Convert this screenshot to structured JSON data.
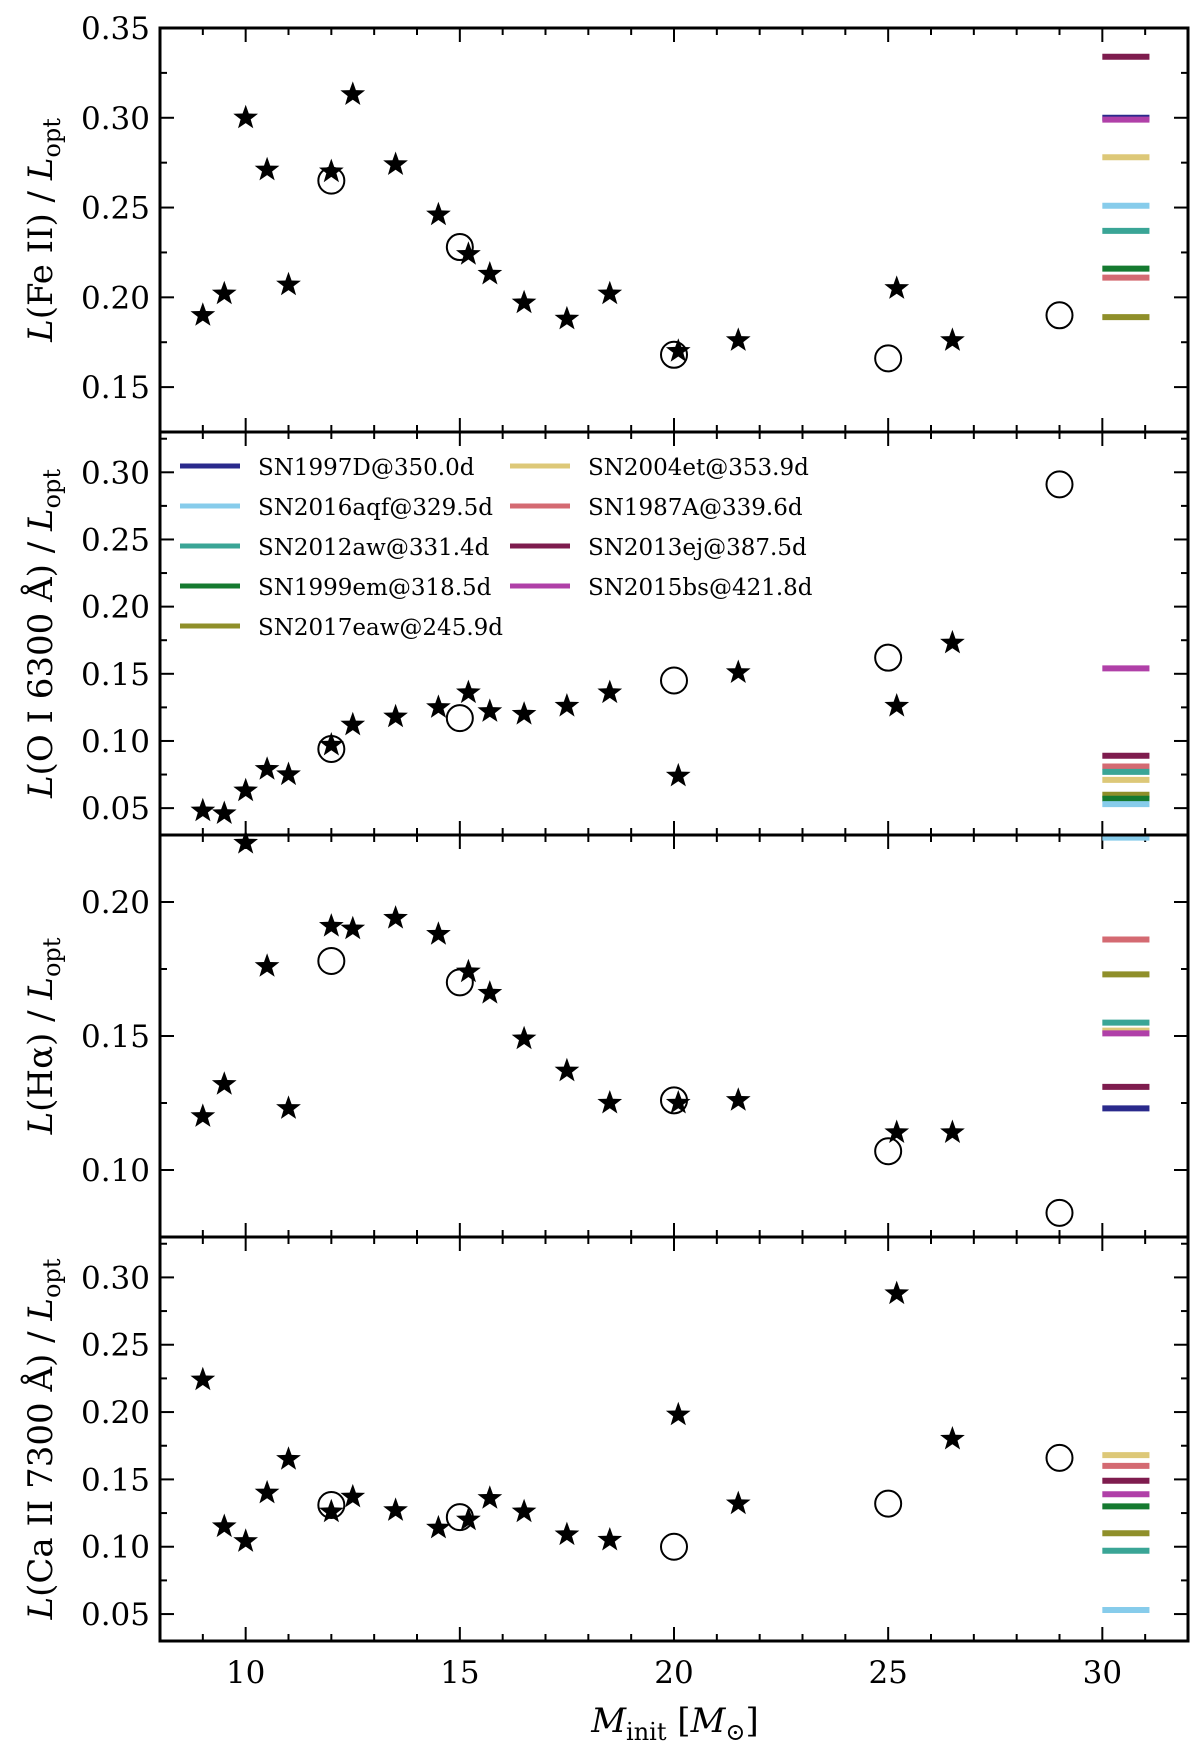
{
  "chart_data": {
    "type": "scatter",
    "xlabel": "M_init [M_⊙]",
    "xlim": [
      8,
      32
    ],
    "xticks": [
      10,
      15,
      20,
      25,
      30
    ],
    "sn_colors": {
      "SN1997D": "#2a2a8c",
      "SN2016aqf": "#87cceb",
      "SN2012aw": "#3aa596",
      "SN1999em": "#157a30",
      "SN2017eaw": "#8f8f2a",
      "SN2004et": "#ddc878",
      "SN1987A": "#d46a72",
      "SN2013ej": "#7e1c4e",
      "SN2015bs": "#b040a8"
    },
    "legend": [
      {
        "sn": "SN1997D",
        "label": "SN1997D@350.0d"
      },
      {
        "sn": "SN2016aqf",
        "label": "SN2016aqf@329.5d"
      },
      {
        "sn": "SN2012aw",
        "label": "SN2012aw@331.4d"
      },
      {
        "sn": "SN1999em",
        "label": "SN1999em@318.5d"
      },
      {
        "sn": "SN2017eaw",
        "label": "SN2017eaw@245.9d"
      },
      {
        "sn": "SN2004et",
        "label": "SN2004et@353.9d"
      },
      {
        "sn": "SN1987A",
        "label": "SN1987A@339.6d"
      },
      {
        "sn": "SN2013ej",
        "label": "SN2013ej@387.5d"
      },
      {
        "sn": "SN2015bs",
        "label": "SN2015bs@421.8d"
      }
    ],
    "panels": [
      {
        "name": "fe2",
        "ylabel": {
          "pre": "L",
          "mid": "(Fe II) / ",
          "post": "L",
          "sub": "opt"
        },
        "ylim": [
          0.125,
          0.35
        ],
        "yticks": [
          "0.15",
          "0.20",
          "0.25",
          "0.30",
          "0.35"
        ],
        "stars": [
          [
            9.0,
            0.19
          ],
          [
            9.5,
            0.202
          ],
          [
            10.0,
            0.3
          ],
          [
            10.5,
            0.271
          ],
          [
            11.0,
            0.207
          ],
          [
            12.0,
            0.27
          ],
          [
            12.5,
            0.313
          ],
          [
            13.5,
            0.274
          ],
          [
            14.5,
            0.246
          ],
          [
            15.2,
            0.224
          ],
          [
            15.7,
            0.213
          ],
          [
            16.5,
            0.197
          ],
          [
            17.5,
            0.188
          ],
          [
            18.5,
            0.202
          ],
          [
            20.1,
            0.17
          ],
          [
            21.5,
            0.176
          ],
          [
            25.2,
            0.205
          ],
          [
            26.5,
            0.176
          ]
        ],
        "circles": [
          [
            12.0,
            0.265
          ],
          [
            15.0,
            0.228
          ],
          [
            20.0,
            0.168
          ],
          [
            25.0,
            0.166
          ],
          [
            29.0,
            0.19
          ]
        ],
        "observed": [
          {
            "sn": "SN2013ej",
            "value": 0.334
          },
          {
            "sn": "SN1997D",
            "value": 0.3
          },
          {
            "sn": "SN2015bs",
            "value": 0.299
          },
          {
            "sn": "SN2004et",
            "value": 0.278
          },
          {
            "sn": "SN2016aqf",
            "value": 0.251
          },
          {
            "sn": "SN2012aw",
            "value": 0.237
          },
          {
            "sn": "SN1999em",
            "value": 0.216
          },
          {
            "sn": "SN1987A",
            "value": 0.211
          },
          {
            "sn": "SN2017eaw",
            "value": 0.189
          }
        ]
      },
      {
        "name": "o1",
        "ylabel": {
          "pre": "L",
          "mid": "(O I 6300 Å) / ",
          "post": "L",
          "sub": "opt"
        },
        "ylim": [
          0.03,
          0.33
        ],
        "yticks": [
          "0.05",
          "0.10",
          "0.15",
          "0.20",
          "0.25",
          "0.30"
        ],
        "stars": [
          [
            9.0,
            0.048
          ],
          [
            9.5,
            0.046
          ],
          [
            10.0,
            0.063
          ],
          [
            10.5,
            0.079
          ],
          [
            11.0,
            0.075
          ],
          [
            12.0,
            0.097
          ],
          [
            12.5,
            0.112
          ],
          [
            13.5,
            0.118
          ],
          [
            14.5,
            0.125
          ],
          [
            15.2,
            0.136
          ],
          [
            15.7,
            0.122
          ],
          [
            16.5,
            0.12
          ],
          [
            17.5,
            0.126
          ],
          [
            18.5,
            0.136
          ],
          [
            20.1,
            0.074
          ],
          [
            21.5,
            0.151
          ],
          [
            25.2,
            0.126
          ],
          [
            26.5,
            0.173
          ]
        ],
        "circles": [
          [
            12.0,
            0.094
          ],
          [
            15.0,
            0.117
          ],
          [
            20.0,
            0.145
          ],
          [
            25.0,
            0.162
          ],
          [
            29.0,
            0.291
          ]
        ],
        "observed": [
          {
            "sn": "SN2015bs",
            "value": 0.154
          },
          {
            "sn": "SN2013ej",
            "value": 0.089
          },
          {
            "sn": "SN1987A",
            "value": 0.081
          },
          {
            "sn": "SN2012aw",
            "value": 0.077
          },
          {
            "sn": "SN2004et",
            "value": 0.071
          },
          {
            "sn": "SN2017eaw",
            "value": 0.06
          },
          {
            "sn": "SN1999em",
            "value": 0.057
          },
          {
            "sn": "SN2016aqf",
            "value": 0.053
          }
        ]
      },
      {
        "name": "halpha",
        "ylabel": {
          "pre": "L",
          "mid": "(Hα) / ",
          "post": "L",
          "sub": "opt"
        },
        "ylim": [
          0.075,
          0.225
        ],
        "yticks": [
          "0.10",
          "0.15",
          "0.20"
        ],
        "stars": [
          [
            9.0,
            0.12
          ],
          [
            9.5,
            0.132
          ],
          [
            10.0,
            0.222
          ],
          [
            10.5,
            0.176
          ],
          [
            11.0,
            0.123
          ],
          [
            12.0,
            0.191
          ],
          [
            12.5,
            0.19
          ],
          [
            13.5,
            0.194
          ],
          [
            14.5,
            0.188
          ],
          [
            15.2,
            0.174
          ],
          [
            15.7,
            0.166
          ],
          [
            16.5,
            0.149
          ],
          [
            17.5,
            0.137
          ],
          [
            18.5,
            0.125
          ],
          [
            20.1,
            0.125
          ],
          [
            21.5,
            0.126
          ],
          [
            25.2,
            0.114
          ],
          [
            26.5,
            0.114
          ]
        ],
        "circles": [
          [
            12.0,
            0.178
          ],
          [
            15.0,
            0.17
          ],
          [
            20.0,
            0.126
          ],
          [
            25.0,
            0.107
          ],
          [
            29.0,
            0.084
          ]
        ],
        "observed": [
          {
            "sn": "SN2016aqf",
            "value": 0.224
          },
          {
            "sn": "SN1987A",
            "value": 0.186
          },
          {
            "sn": "SN2017eaw",
            "value": 0.173
          },
          {
            "sn": "SN2012aw",
            "value": 0.155
          },
          {
            "sn": "SN2004et",
            "value": 0.152
          },
          {
            "sn": "SN2015bs",
            "value": 0.151
          },
          {
            "sn": "SN2013ej",
            "value": 0.131
          },
          {
            "sn": "SN1997D",
            "value": 0.123
          }
        ]
      },
      {
        "name": "ca2",
        "ylabel": {
          "pre": "L",
          "mid": "(Ca II 7300 Å) / ",
          "post": "L",
          "sub": "opt"
        },
        "ylim": [
          0.03,
          0.33
        ],
        "yticks": [
          "0.05",
          "0.10",
          "0.15",
          "0.20",
          "0.25",
          "0.30"
        ],
        "stars": [
          [
            9.0,
            0.224
          ],
          [
            9.5,
            0.115
          ],
          [
            10.0,
            0.104
          ],
          [
            10.5,
            0.14
          ],
          [
            11.0,
            0.165
          ],
          [
            12.0,
            0.126
          ],
          [
            12.5,
            0.137
          ],
          [
            13.5,
            0.127
          ],
          [
            14.5,
            0.114
          ],
          [
            15.2,
            0.12
          ],
          [
            15.7,
            0.136
          ],
          [
            16.5,
            0.126
          ],
          [
            17.5,
            0.109
          ],
          [
            18.5,
            0.105
          ],
          [
            20.1,
            0.198
          ],
          [
            21.5,
            0.132
          ],
          [
            25.2,
            0.288
          ],
          [
            26.5,
            0.18
          ]
        ],
        "circles": [
          [
            12.0,
            0.131
          ],
          [
            15.0,
            0.122
          ],
          [
            20.0,
            0.1
          ],
          [
            25.0,
            0.132
          ],
          [
            29.0,
            0.166
          ]
        ],
        "observed": [
          {
            "sn": "SN2004et",
            "value": 0.168
          },
          {
            "sn": "SN1987A",
            "value": 0.16
          },
          {
            "sn": "SN2013ej",
            "value": 0.149
          },
          {
            "sn": "SN2015bs",
            "value": 0.139
          },
          {
            "sn": "SN1999em",
            "value": 0.13
          },
          {
            "sn": "SN2017eaw",
            "value": 0.11
          },
          {
            "sn": "SN2012aw",
            "value": 0.097
          },
          {
            "sn": "SN2016aqf",
            "value": 0.053
          }
        ]
      }
    ]
  }
}
